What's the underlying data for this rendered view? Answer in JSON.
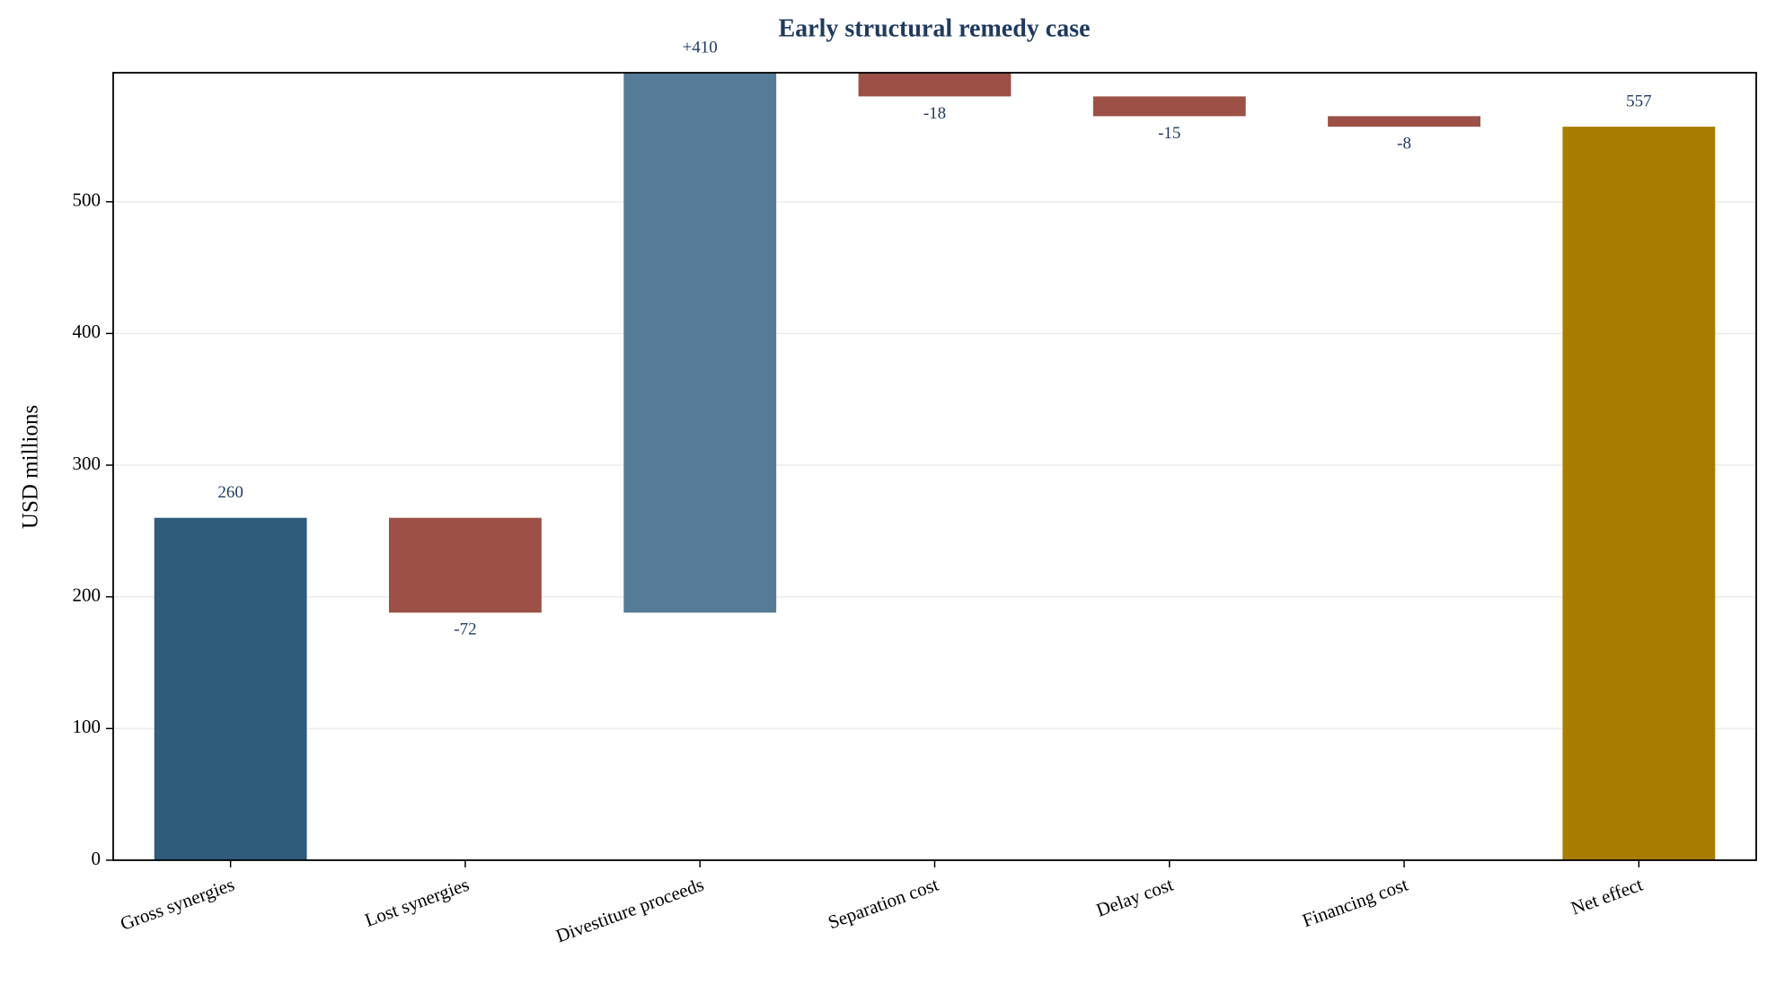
{
  "chart_data": {
    "type": "waterfall",
    "title": "Early structural remedy case",
    "ylabel": "USD millions",
    "categories": [
      "Gross synergies",
      "Lost synergies",
      "Divestiture proceeds",
      "Separation cost",
      "Delay cost",
      "Financing cost",
      "Net effect"
    ],
    "values": [
      260,
      -72,
      410,
      -18,
      -15,
      -8,
      557
    ],
    "value_labels": [
      "260",
      "-72",
      "+410",
      "-18",
      "-15",
      "-8",
      "557"
    ],
    "colors": [
      "#2f5b7c",
      "#9c5046",
      "#557b96",
      "#9c5046",
      "#9c5046",
      "#9c5046",
      "#a87c00"
    ],
    "ylim": [
      0,
      598
    ],
    "yticks": [
      0,
      100,
      200,
      300,
      400,
      500
    ],
    "grid": true
  }
}
